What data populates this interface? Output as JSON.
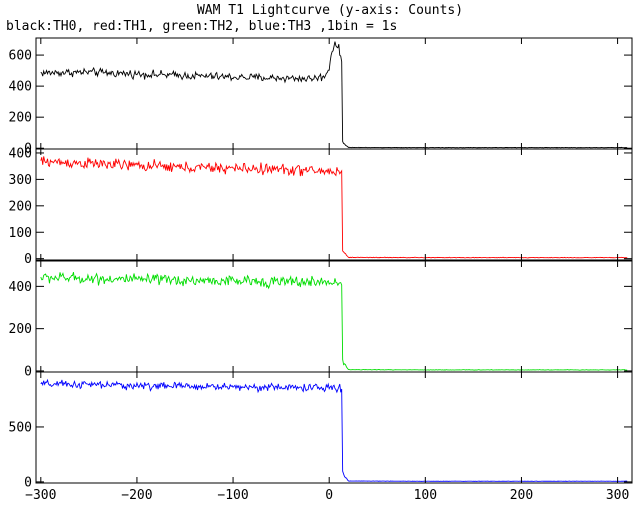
{
  "chart_data": {
    "type": "line",
    "title": "WAM T1 Lightcurve (y-axis: Counts)",
    "subtitle": "black:TH0, red:TH1, green:TH2, blue:TH3 ,1bin = 1s",
    "xlim": [
      -305,
      315
    ],
    "x_ticks": [
      -300,
      -200,
      -100,
      0,
      100,
      200,
      300
    ],
    "x_tick_labels": [
      "−300",
      "−200",
      "−100",
      "0",
      "100",
      "200",
      "300"
    ],
    "grid": false,
    "series": [
      {
        "name": "TH0",
        "color": "#000000",
        "ylim": [
          -5,
          710
        ],
        "y_ticks": [
          0,
          200,
          400,
          600
        ],
        "y_tick_labels": [
          "0",
          "200",
          "400",
          "600"
        ],
        "x": [
          -300,
          -250,
          -200,
          -150,
          -100,
          -50,
          -20,
          -5,
          0,
          3,
          6,
          9,
          12,
          13,
          14,
          20,
          100,
          200,
          300,
          310
        ],
        "values": [
          485,
          490,
          478,
          468,
          458,
          452,
          448,
          460,
          520,
          630,
          680,
          650,
          600,
          550,
          40,
          5,
          4,
          4,
          4,
          4
        ],
        "noise": 22
      },
      {
        "name": "TH1",
        "color": "#ff0000",
        "ylim": [
          -5,
          415
        ],
        "y_ticks": [
          0,
          100,
          200,
          300,
          400
        ],
        "y_tick_labels": [
          "0",
          "100",
          "200",
          "300",
          "400"
        ],
        "x": [
          -300,
          -250,
          -200,
          -150,
          -100,
          -50,
          0,
          12,
          13,
          14,
          20,
          100,
          200,
          300,
          310
        ],
        "values": [
          368,
          360,
          352,
          345,
          342,
          338,
          330,
          330,
          320,
          30,
          5,
          4,
          4,
          4,
          4
        ],
        "noise": 18
      },
      {
        "name": "TH2",
        "color": "#00dd00",
        "ylim": [
          -5,
          520
        ],
        "y_ticks": [
          0,
          200,
          400
        ],
        "y_tick_labels": [
          "0",
          "200",
          "400"
        ],
        "x": [
          -300,
          -250,
          -200,
          -150,
          -100,
          -50,
          0,
          12,
          13,
          14,
          20,
          100,
          200,
          300,
          310
        ],
        "values": [
          442,
          438,
          432,
          428,
          425,
          422,
          420,
          420,
          410,
          50,
          6,
          5,
          5,
          5,
          5
        ],
        "noise": 22
      },
      {
        "name": "TH3",
        "color": "#0000ff",
        "ylim": [
          -10,
          1000
        ],
        "y_ticks": [
          0,
          500
        ],
        "y_tick_labels": [
          "0",
          "500"
        ],
        "x": [
          -300,
          -250,
          -200,
          -150,
          -100,
          -50,
          0,
          12,
          13,
          14,
          20,
          100,
          200,
          300,
          310
        ],
        "values": [
          890,
          885,
          875,
          870,
          865,
          860,
          855,
          850,
          840,
          80,
          8,
          6,
          6,
          6,
          6
        ],
        "noise": 30
      }
    ]
  }
}
